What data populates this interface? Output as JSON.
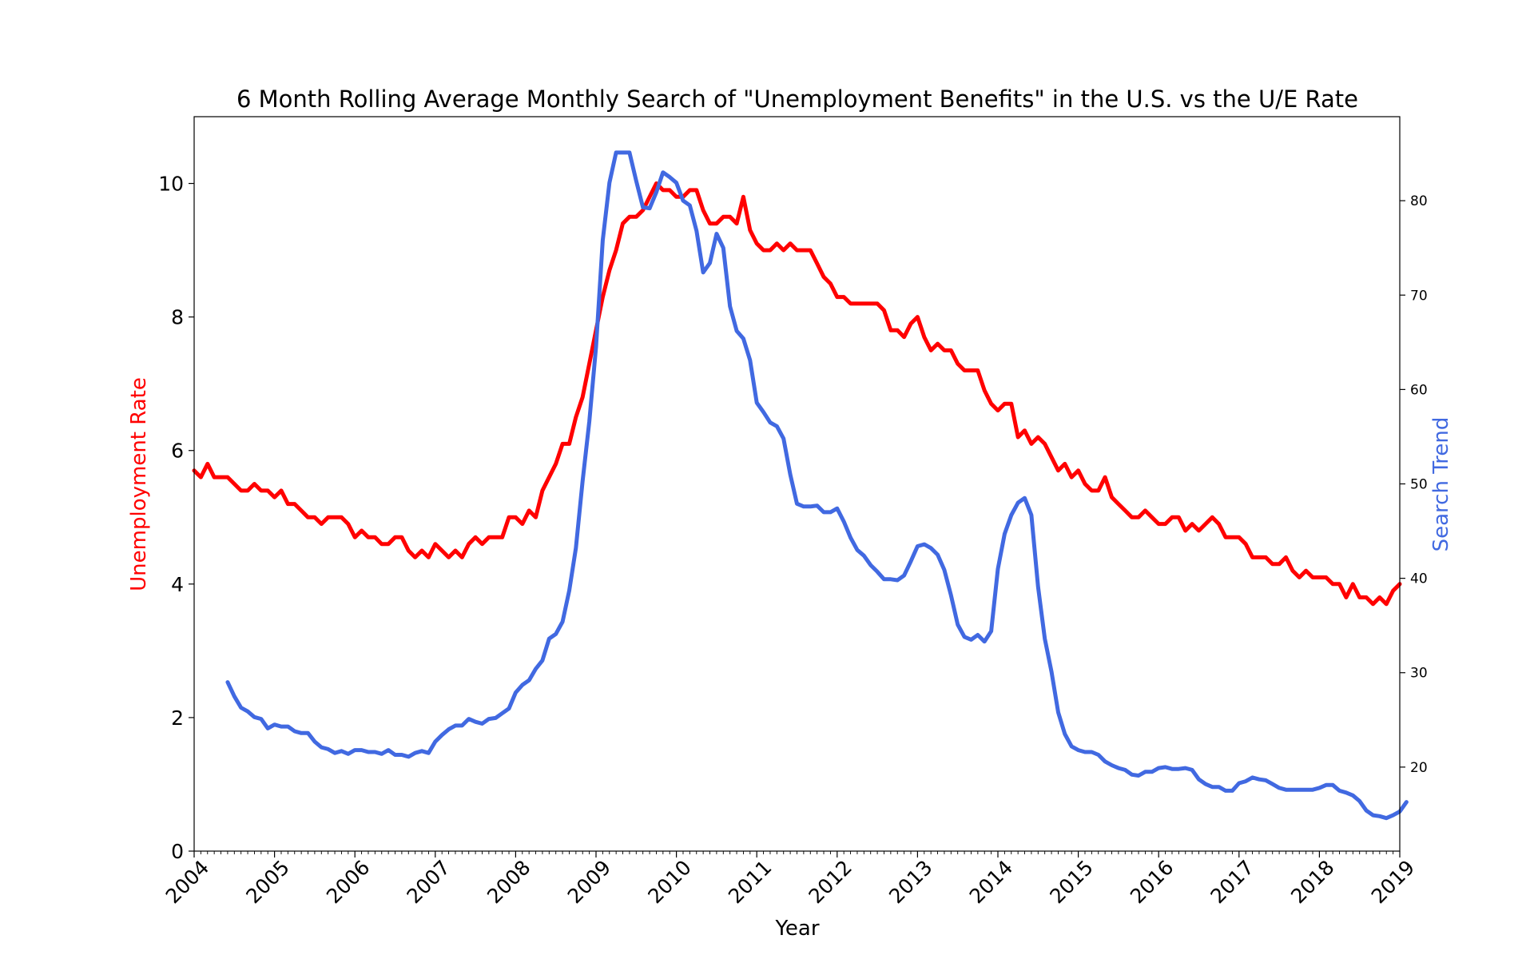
{
  "chart_data": {
    "type": "line",
    "title": "6 Month Rolling Average Monthly Search of \"Unemployment Benefits\" in the U.S. vs the U/E Rate",
    "xlabel": "Year",
    "x_ticks": [
      "2004",
      "2005",
      "2006",
      "2007",
      "2008",
      "2009",
      "2010",
      "2011",
      "2012",
      "2013",
      "2014",
      "2015",
      "2016",
      "2017",
      "2018",
      "2019"
    ],
    "xlim": [
      "2004-01",
      "2019-01"
    ],
    "grid": false,
    "left_axis": {
      "label": "Unemployment Rate",
      "color": "#ff0000",
      "ylim": [
        0,
        11
      ],
      "ticks": [
        "0",
        "2",
        "4",
        "6",
        "8",
        "10"
      ]
    },
    "right_axis": {
      "label": "Search Trend",
      "color": "#4169e1",
      "ylim": [
        11.1,
        88.9
      ],
      "ticks": [
        "20",
        "30",
        "40",
        "50",
        "60",
        "70",
        "80"
      ]
    },
    "series": [
      {
        "axis": "left",
        "color": "#ff0000",
        "start": "2004-01",
        "values": [
          5.7,
          5.6,
          5.8,
          5.6,
          5.6,
          5.6,
          5.5,
          5.4,
          5.4,
          5.5,
          5.4,
          5.4,
          5.3,
          5.4,
          5.2,
          5.2,
          5.1,
          5.0,
          5.0,
          4.9,
          5.0,
          5.0,
          5.0,
          4.9,
          4.7,
          4.8,
          4.7,
          4.7,
          4.6,
          4.6,
          4.7,
          4.7,
          4.5,
          4.4,
          4.5,
          4.4,
          4.6,
          4.5,
          4.4,
          4.5,
          4.4,
          4.6,
          4.7,
          4.6,
          4.7,
          4.7,
          4.7,
          5.0,
          5.0,
          4.9,
          5.1,
          5.0,
          5.4,
          5.6,
          5.8,
          6.1,
          6.1,
          6.5,
          6.8,
          7.3,
          7.8,
          8.3,
          8.7,
          9.0,
          9.4,
          9.5,
          9.5,
          9.6,
          9.8,
          10.0,
          9.9,
          9.9,
          9.8,
          9.8,
          9.9,
          9.9,
          9.6,
          9.4,
          9.4,
          9.5,
          9.5,
          9.4,
          9.8,
          9.3,
          9.1,
          9.0,
          9.0,
          9.1,
          9.0,
          9.1,
          9.0,
          9.0,
          9.0,
          8.8,
          8.6,
          8.5,
          8.3,
          8.3,
          8.2,
          8.2,
          8.2,
          8.2,
          8.2,
          8.1,
          7.8,
          7.8,
          7.7,
          7.9,
          8.0,
          7.7,
          7.5,
          7.6,
          7.5,
          7.5,
          7.3,
          7.2,
          7.2,
          7.2,
          6.9,
          6.7,
          6.6,
          6.7,
          6.7,
          6.2,
          6.3,
          6.1,
          6.2,
          6.1,
          5.9,
          5.7,
          5.8,
          5.6,
          5.7,
          5.5,
          5.4,
          5.4,
          5.6,
          5.3,
          5.2,
          5.1,
          5.0,
          5.0,
          5.1,
          5.0,
          4.9,
          4.9,
          5.0,
          5.0,
          4.8,
          4.9,
          4.8,
          4.9,
          5.0,
          4.9,
          4.7,
          4.7,
          4.7,
          4.6,
          4.4,
          4.4,
          4.4,
          4.3,
          4.3,
          4.4,
          4.2,
          4.1,
          4.2,
          4.1,
          4.1,
          4.1,
          4.0,
          4.0,
          3.8,
          4.0,
          3.8,
          3.8,
          3.7,
          3.8,
          3.7,
          3.9,
          4.0
        ]
      },
      {
        "axis": "right",
        "color": "#4169e1",
        "start": "2004-06",
        "values": [
          29.0,
          27.5,
          26.3,
          25.9,
          25.3,
          25.1,
          24.1,
          24.5,
          24.3,
          24.3,
          23.8,
          23.6,
          23.6,
          22.7,
          22.1,
          21.9,
          21.5,
          21.7,
          21.4,
          21.8,
          21.8,
          21.6,
          21.6,
          21.4,
          21.8,
          21.3,
          21.3,
          21.1,
          21.5,
          21.7,
          21.5,
          22.7,
          23.4,
          24.0,
          24.4,
          24.4,
          25.1,
          24.8,
          24.6,
          25.1,
          25.2,
          25.7,
          26.2,
          27.9,
          28.7,
          29.2,
          30.4,
          31.3,
          33.6,
          34.1,
          35.4,
          38.7,
          43.2,
          50.3,
          56.6,
          64.5,
          75.8,
          81.9,
          85.1,
          85.1,
          85.1,
          82.1,
          79.3,
          79.2,
          80.9,
          83.0,
          82.5,
          81.9,
          80.0,
          79.5,
          76.8,
          72.4,
          73.4,
          76.5,
          75.0,
          68.8,
          66.2,
          65.4,
          63.1,
          58.6,
          57.6,
          56.5,
          56.1,
          54.8,
          51.0,
          47.9,
          47.6,
          47.6,
          47.7,
          47.0,
          47.0,
          47.4,
          46.0,
          44.3,
          43.0,
          42.4,
          41.4,
          40.7,
          39.9,
          39.9,
          39.8,
          40.3,
          41.8,
          43.4,
          43.6,
          43.2,
          42.5,
          40.9,
          38.2,
          35.1,
          33.8,
          33.5,
          34.0,
          33.3,
          34.4,
          41.0,
          44.7,
          46.7,
          48.0,
          48.5,
          46.7,
          39.1,
          33.6,
          30.1,
          25.8,
          23.5,
          22.2,
          21.8,
          21.6,
          21.6,
          21.3,
          20.6,
          20.2,
          19.9,
          19.7,
          19.2,
          19.1,
          19.5,
          19.5,
          19.9,
          20.0,
          19.8,
          19.8,
          19.9,
          19.7,
          18.7,
          18.2,
          17.9,
          17.9,
          17.5,
          17.5,
          18.3,
          18.5,
          18.9,
          18.7,
          18.6,
          18.2,
          17.8,
          17.6,
          17.6,
          17.6,
          17.6,
          17.6,
          17.8,
          18.1,
          18.1,
          17.5,
          17.3,
          17.0,
          16.4,
          15.4,
          14.9,
          14.8,
          14.6,
          14.9,
          15.3,
          16.3
        ]
      }
    ]
  }
}
